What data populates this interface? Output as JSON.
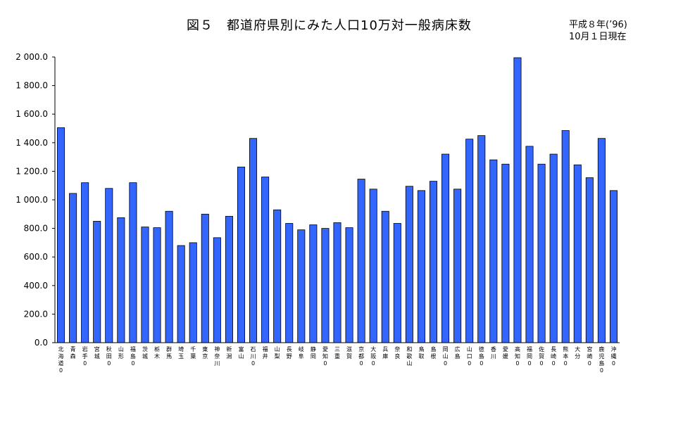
{
  "chart_data": {
    "type": "bar",
    "title": "図５　都道府県別にみた人口10万対一般病床数",
    "subtitle_lines": [
      "平成８年(’96)",
      "10月１日現在"
    ],
    "xlabel": "",
    "ylabel": "",
    "ylim": [
      0,
      2000
    ],
    "y_ticks": [
      "0.0",
      "200.0",
      "400.0",
      "600.0",
      "800.0",
      "1 000.0",
      "1 200.0",
      "1 400.0",
      "1 600.0",
      "1 800.0",
      "2 000.0"
    ],
    "grid": false,
    "bar_color": "#3366ff",
    "categories": [
      "北海道",
      "青森",
      "岩手",
      "宮城",
      "秋田",
      "山形",
      "福島",
      "茨城",
      "栃木",
      "群馬",
      "埼玉",
      "千葉",
      "東京",
      "神奈川",
      "新潟",
      "富山",
      "石川",
      "福井",
      "山梨",
      "長野",
      "岐阜",
      "静岡",
      "愛知",
      "三重",
      "滋賀",
      "京都",
      "大阪",
      "兵庫",
      "奈良",
      "和歌山",
      "鳥取",
      "島根",
      "岡山",
      "広島",
      "山口",
      "徳島",
      "香川",
      "愛媛",
      "高知",
      "福岡",
      "佐賀",
      "長崎",
      "熊本",
      "大分",
      "宮崎",
      "鹿児島",
      "沖縄"
    ],
    "values": [
      1505,
      1045,
      1120,
      850,
      1080,
      875,
      1120,
      810,
      805,
      920,
      680,
      700,
      900,
      735,
      885,
      1230,
      1430,
      1160,
      930,
      835,
      790,
      825,
      800,
      840,
      805,
      1145,
      1075,
      920,
      835,
      1095,
      1065,
      1130,
      1320,
      1075,
      1425,
      1450,
      1280,
      1250,
      1995,
      1375,
      1250,
      1320,
      1485,
      1245,
      1155,
      1430,
      1065
    ],
    "x_label_marks": [
      1,
      0,
      1,
      0,
      1,
      0,
      1,
      0,
      0,
      0,
      0,
      0,
      0,
      0,
      0,
      0,
      1,
      0,
      0,
      0,
      0,
      0,
      1,
      0,
      0,
      1,
      1,
      0,
      0,
      0,
      0,
      0,
      1,
      0,
      1,
      1,
      0,
      0,
      1,
      1,
      1,
      1,
      1,
      0,
      1,
      1,
      1
    ],
    "x_label_mark_char": "0"
  }
}
